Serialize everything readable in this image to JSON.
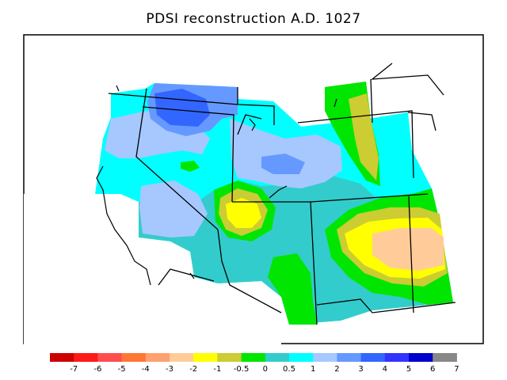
{
  "title": "PDSI reconstruction A.D. 1027",
  "legend": {
    "colors": [
      "#cc0000",
      "#ff1a1a",
      "#ff4d4d",
      "#ff7733",
      "#ffa070",
      "#ffcc99",
      "#ffff00",
      "#cccc33",
      "#00e600",
      "#33cccc",
      "#00ffff",
      "#a6c8ff",
      "#6699ff",
      "#3366ff",
      "#3333ff",
      "#0000cc",
      "#888888"
    ],
    "labels": [
      "-7",
      "-6",
      "-5",
      "-4",
      "-3",
      "-2",
      "-1",
      "-0.5",
      "0",
      "0.5",
      "1",
      "2",
      "3",
      "4",
      "5",
      "6",
      "7"
    ]
  }
}
